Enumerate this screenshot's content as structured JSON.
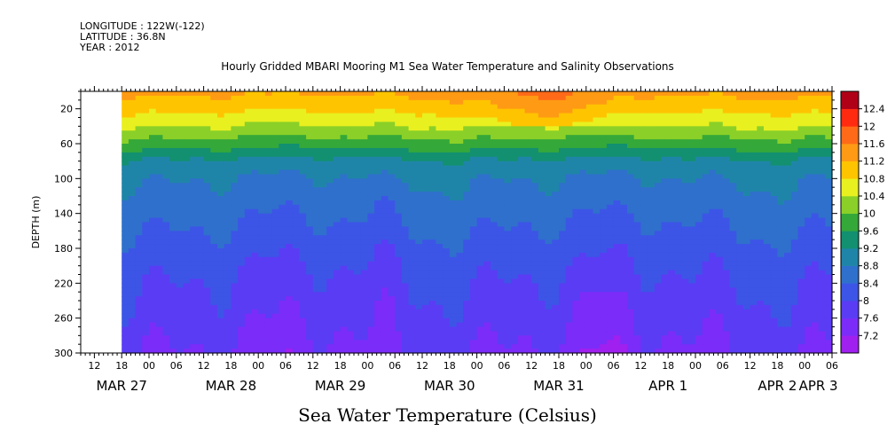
{
  "header": {
    "longitude": "LONGITUDE : 122W(-122)",
    "latitude": "LATITUDE : 36.8N",
    "year": "YEAR : 2012"
  },
  "title": "Hourly Gridded MBARI Mooring M1 Sea Water Temperature and Salinity Observations",
  "bottom_title": "Sea Water Temperature (Celsius)",
  "chart_data": {
    "type": "heatmap",
    "title": "Hourly Gridded MBARI Mooring M1 Sea Water Temperature and Salinity Observations",
    "xlabel": "",
    "ylabel": "DEPTH (m)",
    "colorbar_label": "Sea Water Temperature (Celsius)",
    "x_hour_range": [
      0,
      165
    ],
    "data_start_hour": 9,
    "y_range": [
      0,
      300
    ],
    "y_inverted": true,
    "y_ticks": [
      20,
      60,
      100,
      140,
      180,
      220,
      260,
      300
    ],
    "x_hour_ticks": [
      {
        "label": "12",
        "hour": 3
      },
      {
        "label": "18",
        "hour": 9
      },
      {
        "label": "00",
        "hour": 15
      },
      {
        "label": "06",
        "hour": 21
      },
      {
        "label": "12",
        "hour": 27
      },
      {
        "label": "18",
        "hour": 33
      },
      {
        "label": "00",
        "hour": 39
      },
      {
        "label": "06",
        "hour": 45
      },
      {
        "label": "12",
        "hour": 51
      },
      {
        "label": "18",
        "hour": 57
      },
      {
        "label": "00",
        "hour": 63
      },
      {
        "label": "06",
        "hour": 69
      },
      {
        "label": "12",
        "hour": 75
      },
      {
        "label": "18",
        "hour": 81
      },
      {
        "label": "00",
        "hour": 87
      },
      {
        "label": "06",
        "hour": 93
      },
      {
        "label": "12",
        "hour": 99
      },
      {
        "label": "18",
        "hour": 105
      },
      {
        "label": "00",
        "hour": 111
      },
      {
        "label": "06",
        "hour": 117
      },
      {
        "label": "12",
        "hour": 123
      },
      {
        "label": "18",
        "hour": 129
      },
      {
        "label": "00",
        "hour": 135
      },
      {
        "label": "06",
        "hour": 141
      },
      {
        "label": "12",
        "hour": 147
      },
      {
        "label": "18",
        "hour": 153
      },
      {
        "label": "00",
        "hour": 159
      },
      {
        "label": "06",
        "hour": 165
      }
    ],
    "date_labels": [
      {
        "label": "MAR 27",
        "hour": 9
      },
      {
        "label": "MAR 28",
        "hour": 33
      },
      {
        "label": "MAR 29",
        "hour": 57
      },
      {
        "label": "MAR 30",
        "hour": 81
      },
      {
        "label": "MAR 31",
        "hour": 105
      },
      {
        "label": "APR  1",
        "hour": 129
      },
      {
        "label": "APR  2",
        "hour": 153
      },
      {
        "label": "APR  3",
        "hour": 162
      }
    ],
    "color_levels": [
      7.2,
      7.6,
      8,
      8.4,
      8.8,
      9.2,
      9.6,
      10,
      10.4,
      10.8,
      11.2,
      11.6,
      12,
      12.4
    ],
    "level_colors": [
      "#a020f0",
      "#7b2cf8",
      "#5a3cf5",
      "#3c55e6",
      "#2f70cc",
      "#1f85a8",
      "#129070",
      "#35a83a",
      "#8ad028",
      "#e8f020",
      "#ffc400",
      "#ff9a14",
      "#ff6a18",
      "#ff2a10",
      "#b00018"
    ],
    "temperature_profile": [
      {
        "depth": 5,
        "temp": 11.2
      },
      {
        "depth": 20,
        "temp": 10.9
      },
      {
        "depth": 40,
        "temp": 10.4
      },
      {
        "depth": 60,
        "temp": 9.8
      },
      {
        "depth": 80,
        "temp": 9.1
      },
      {
        "depth": 100,
        "temp": 8.8
      },
      {
        "depth": 140,
        "temp": 8.5
      },
      {
        "depth": 180,
        "temp": 8.2
      },
      {
        "depth": 220,
        "temp": 7.95
      },
      {
        "depth": 260,
        "temp": 7.75
      },
      {
        "depth": 300,
        "temp": 7.5
      }
    ]
  }
}
